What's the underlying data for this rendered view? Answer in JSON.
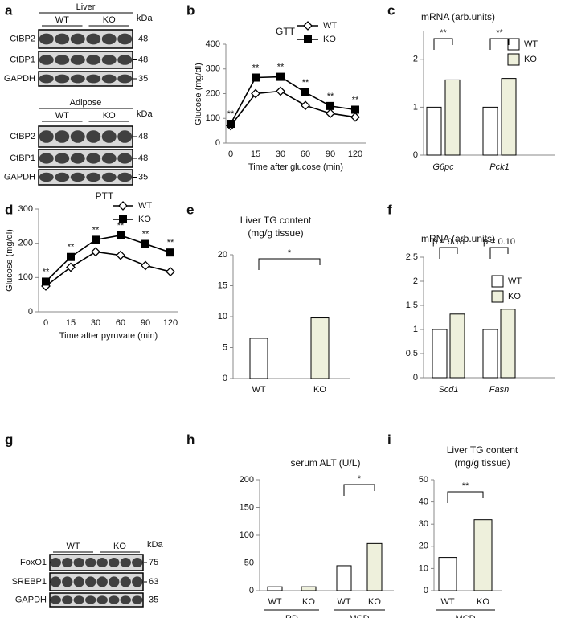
{
  "blots": [
    {
      "panel": "a",
      "sections": [
        {
          "header": "Liver",
          "groups": [
            "WT",
            "KO"
          ],
          "unit": "kDa",
          "rows": [
            {
              "label": "CtBP2",
              "size": 48
            },
            {
              "label": "CtBP1",
              "size": 48
            },
            {
              "label": "GAPDH",
              "size": 35
            }
          ]
        },
        {
          "header": "Adipose",
          "groups": [
            "WT",
            "KO"
          ],
          "unit": "kDa",
          "rows": [
            {
              "label": "CtBP2",
              "size": 48
            },
            {
              "label": "CtBP1",
              "size": 48
            },
            {
              "label": "GAPDH",
              "size": 35
            }
          ]
        }
      ]
    },
    {
      "panel": "g",
      "sections": [
        {
          "groups": [
            "WT",
            "KO"
          ],
          "unit": "kDa",
          "rows": [
            {
              "label": "FoxO1",
              "size": 75
            },
            {
              "label": "SREBP1",
              "size": 63
            },
            {
              "label": "GAPDH",
              "size": 35
            }
          ]
        }
      ]
    }
  ],
  "chart_data": [
    {
      "panel": "b",
      "type": "line",
      "title": "GTT",
      "categories": [
        "0",
        "15",
        "30",
        "60",
        "90",
        "120"
      ],
      "xlabel": "Time after glucose (min)",
      "ylabel": "Glucose (mg/dl)",
      "ylim": [
        0,
        400
      ],
      "yticks": [
        0,
        100,
        200,
        300,
        400
      ],
      "legend": "top-right",
      "series": [
        {
          "name": "WT",
          "color": "#000000",
          "marker": "diamond",
          "values": [
            70,
            200,
            210,
            152,
            120,
            105
          ]
        },
        {
          "name": "KO",
          "color": "#000000",
          "marker": "square",
          "values": [
            78,
            265,
            268,
            205,
            150,
            135
          ]
        }
      ],
      "annotations": [
        "**",
        "**",
        "**",
        "**",
        "**",
        "**"
      ]
    },
    {
      "panel": "c",
      "type": "bar",
      "title": "mRNA (arb.units)",
      "categories": [
        "G6pc",
        "Pck1"
      ],
      "category_style": "italic",
      "ylim": [
        0,
        2.6
      ],
      "yticks": [
        0,
        1,
        2
      ],
      "legend": "top-right",
      "series": [
        {
          "name": "WT",
          "color": "#ffffff",
          "values": [
            1.0,
            1.0
          ]
        },
        {
          "name": "KO",
          "color": "#eef0dc",
          "values": [
            1.57,
            1.6
          ]
        }
      ],
      "brackets": [
        "**",
        "**"
      ]
    },
    {
      "panel": "d",
      "type": "line",
      "title": "PTT",
      "categories": [
        "0",
        "15",
        "30",
        "60",
        "90",
        "120"
      ],
      "xlabel": "Time after pyruvate (min)",
      "ylabel": "Glucose (mg/dl)",
      "ylim": [
        0,
        300
      ],
      "yticks": [
        0,
        100,
        200,
        300
      ],
      "legend": "top-right",
      "series": [
        {
          "name": "WT",
          "color": "#000000",
          "marker": "diamond",
          "values": [
            75,
            130,
            175,
            165,
            135,
            117
          ]
        },
        {
          "name": "KO",
          "color": "#000000",
          "marker": "square",
          "values": [
            88,
            160,
            210,
            223,
            198,
            173
          ]
        }
      ],
      "annotations": [
        "**",
        "**",
        "**",
        "**",
        "**",
        "**"
      ]
    },
    {
      "panel": "e",
      "type": "bar",
      "title": "Liver TG content",
      "subtitle": "(mg/g tissue)",
      "categories": [
        "WT",
        "KO"
      ],
      "values": [
        6.5,
        9.8
      ],
      "colors": [
        "#ffffff",
        "#eef0dc"
      ],
      "ylim": [
        0,
        20
      ],
      "yticks": [
        0,
        5,
        10,
        15,
        20
      ],
      "brackets": [
        "*"
      ]
    },
    {
      "panel": "f",
      "type": "bar",
      "title": "mRNA (arb.units)",
      "categories": [
        "Scd1",
        "Fasn"
      ],
      "category_style": "italic",
      "ylim": [
        0,
        2.5
      ],
      "yticks": [
        0,
        0.5,
        1,
        1.5,
        2,
        2.5
      ],
      "legend": "top-right",
      "series": [
        {
          "name": "WT",
          "color": "#ffffff",
          "values": [
            1.0,
            1.0
          ]
        },
        {
          "name": "KO",
          "color": "#eef0dc",
          "values": [
            1.32,
            1.42
          ]
        }
      ],
      "brackets": [
        "p = 0.18",
        "p = 0.10"
      ]
    },
    {
      "panel": "h",
      "type": "bar",
      "title": "serum ALT (U/L)",
      "categories": [
        "WT",
        "KO",
        "WT",
        "KO"
      ],
      "groups": [
        "RD",
        "MCD"
      ],
      "values": [
        7,
        7,
        45,
        85
      ],
      "colors": [
        "#ffffff",
        "#eef0dc",
        "#ffffff",
        "#eef0dc"
      ],
      "ylim": [
        0,
        200
      ],
      "yticks": [
        0,
        50,
        100,
        150,
        200
      ],
      "brackets": [
        null,
        "*"
      ]
    },
    {
      "panel": "i",
      "type": "bar",
      "title": "Liver TG content",
      "subtitle": "(mg/g tissue)",
      "categories": [
        "WT",
        "KO"
      ],
      "groups": [
        "MCD"
      ],
      "values": [
        15,
        32
      ],
      "colors": [
        "#ffffff",
        "#eef0dc"
      ],
      "ylim": [
        0,
        50
      ],
      "yticks": [
        0,
        10,
        20,
        30,
        40,
        50
      ],
      "brackets": [
        "**"
      ]
    }
  ]
}
